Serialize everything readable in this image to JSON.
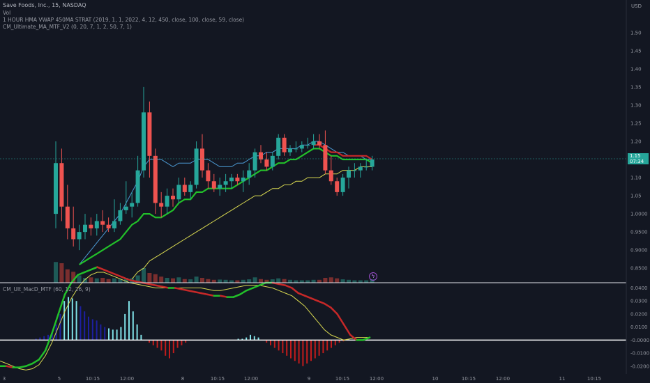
{
  "header": {
    "symbol_line": "Save Foods, Inc., 15, NASDAQ",
    "vol_label": "Vol",
    "indicator1": "1 HOUR HMA VWAP 450MA STRAT (2019, 1, 1, 2022, 4, 12, 450, close, 100, close, 59, close)",
    "indicator2": "CM_Ultimate_MA_MTF_V2 (0, 20, 7, 1, 2, 50, 7, 1)",
    "macd_label": "CM_Ult_MacD_MTF (60, 12, 26, 9)"
  },
  "currency": "USD",
  "price_tag": {
    "price": "1.15",
    "countdown": "07:34"
  },
  "alert_icon": "lightning-icon",
  "colors": {
    "background": "#131722",
    "up": "#26a69a",
    "down": "#ef5350",
    "hma": "#4c9ad4",
    "ma_green": "#22c02a",
    "ma_red": "#c62828",
    "ma_yellow": "#d8d850",
    "macd_hist_pos": "#1d1fa0",
    "macd_hist_pos_light": "#7fe0e6",
    "macd_hist_neg": "#c21c1c"
  },
  "chart_data": {
    "type": "candlestick",
    "price_axis": {
      "ylim": [
        0.81,
        1.59
      ],
      "ticks": [
        "1.50",
        "1.45",
        "1.40",
        "1.35",
        "1.30",
        "1.25",
        "1.20",
        "1.15",
        "1.10",
        "1.05",
        "1.0000",
        "0.9500",
        "0.9000",
        "0.8500"
      ]
    },
    "time_axis": {
      "labels": [
        "3",
        "5",
        "10:15",
        "12:00",
        "8",
        "10:15",
        "12:00",
        "9",
        "10:15",
        "12:00",
        "10",
        "10:15",
        "12:00",
        "11",
        "10:15"
      ]
    },
    "candles": [
      {
        "o": 1.0,
        "h": 1.2,
        "l": 0.96,
        "c": 1.14
      },
      {
        "o": 1.14,
        "h": 1.18,
        "l": 0.98,
        "c": 1.02
      },
      {
        "o": 1.02,
        "h": 1.08,
        "l": 0.93,
        "c": 0.96
      },
      {
        "o": 0.96,
        "h": 1.02,
        "l": 0.91,
        "c": 0.93
      },
      {
        "o": 0.93,
        "h": 0.97,
        "l": 0.9,
        "c": 0.95
      },
      {
        "o": 0.95,
        "h": 1.0,
        "l": 0.93,
        "c": 0.97
      },
      {
        "o": 0.97,
        "h": 0.99,
        "l": 0.94,
        "c": 0.96
      },
      {
        "o": 0.96,
        "h": 1.0,
        "l": 0.94,
        "c": 0.98
      },
      {
        "o": 0.98,
        "h": 1.01,
        "l": 0.95,
        "c": 0.97
      },
      {
        "o": 0.97,
        "h": 0.99,
        "l": 0.95,
        "c": 0.96
      },
      {
        "o": 0.96,
        "h": 1.04,
        "l": 0.95,
        "c": 0.98
      },
      {
        "o": 0.98,
        "h": 1.03,
        "l": 0.97,
        "c": 1.01
      },
      {
        "o": 1.01,
        "h": 1.09,
        "l": 1.0,
        "c": 1.02
      },
      {
        "o": 1.02,
        "h": 1.06,
        "l": 0.99,
        "c": 1.03
      },
      {
        "o": 1.03,
        "h": 1.16,
        "l": 1.02,
        "c": 1.12
      },
      {
        "o": 1.12,
        "h": 1.35,
        "l": 1.1,
        "c": 1.28
      },
      {
        "o": 1.28,
        "h": 1.31,
        "l": 1.1,
        "c": 1.16
      },
      {
        "o": 1.16,
        "h": 1.18,
        "l": 1.0,
        "c": 1.03
      },
      {
        "o": 1.03,
        "h": 1.06,
        "l": 0.99,
        "c": 1.02
      },
      {
        "o": 1.02,
        "h": 1.07,
        "l": 1.0,
        "c": 1.05
      },
      {
        "o": 1.05,
        "h": 1.07,
        "l": 1.02,
        "c": 1.04
      },
      {
        "o": 1.04,
        "h": 1.1,
        "l": 1.03,
        "c": 1.08
      },
      {
        "o": 1.08,
        "h": 1.1,
        "l": 1.05,
        "c": 1.06
      },
      {
        "o": 1.06,
        "h": 1.09,
        "l": 1.04,
        "c": 1.08
      },
      {
        "o": 1.08,
        "h": 1.2,
        "l": 1.07,
        "c": 1.18
      },
      {
        "o": 1.18,
        "h": 1.22,
        "l": 1.1,
        "c": 1.12
      },
      {
        "o": 1.12,
        "h": 1.14,
        "l": 1.07,
        "c": 1.09
      },
      {
        "o": 1.09,
        "h": 1.11,
        "l": 1.06,
        "c": 1.07
      },
      {
        "o": 1.07,
        "h": 1.1,
        "l": 1.05,
        "c": 1.08
      },
      {
        "o": 1.08,
        "h": 1.11,
        "l": 1.06,
        "c": 1.09
      },
      {
        "o": 1.09,
        "h": 1.11,
        "l": 1.07,
        "c": 1.1
      },
      {
        "o": 1.1,
        "h": 1.11,
        "l": 1.08,
        "c": 1.09
      },
      {
        "o": 1.09,
        "h": 1.12,
        "l": 1.06,
        "c": 1.1
      },
      {
        "o": 1.1,
        "h": 1.14,
        "l": 1.08,
        "c": 1.12
      },
      {
        "o": 1.12,
        "h": 1.18,
        "l": 1.1,
        "c": 1.17
      },
      {
        "o": 1.17,
        "h": 1.19,
        "l": 1.14,
        "c": 1.15
      },
      {
        "o": 1.15,
        "h": 1.17,
        "l": 1.12,
        "c": 1.13
      },
      {
        "o": 1.13,
        "h": 1.17,
        "l": 1.12,
        "c": 1.16
      },
      {
        "o": 1.16,
        "h": 1.22,
        "l": 1.15,
        "c": 1.21
      },
      {
        "o": 1.21,
        "h": 1.22,
        "l": 1.16,
        "c": 1.17
      },
      {
        "o": 1.17,
        "h": 1.19,
        "l": 1.16,
        "c": 1.18
      },
      {
        "o": 1.18,
        "h": 1.2,
        "l": 1.17,
        "c": 1.18
      },
      {
        "o": 1.18,
        "h": 1.2,
        "l": 1.17,
        "c": 1.19
      },
      {
        "o": 1.19,
        "h": 1.21,
        "l": 1.18,
        "c": 1.19
      },
      {
        "o": 1.19,
        "h": 1.22,
        "l": 1.18,
        "c": 1.2
      },
      {
        "o": 1.2,
        "h": 1.22,
        "l": 1.18,
        "c": 1.19
      },
      {
        "o": 1.19,
        "h": 1.23,
        "l": 1.11,
        "c": 1.12
      },
      {
        "o": 1.12,
        "h": 1.16,
        "l": 1.08,
        "c": 1.09
      },
      {
        "o": 1.09,
        "h": 1.1,
        "l": 1.05,
        "c": 1.06
      },
      {
        "o": 1.06,
        "h": 1.11,
        "l": 1.05,
        "c": 1.1
      },
      {
        "o": 1.1,
        "h": 1.13,
        "l": 1.07,
        "c": 1.12
      },
      {
        "o": 1.12,
        "h": 1.14,
        "l": 1.1,
        "c": 1.12
      },
      {
        "o": 1.12,
        "h": 1.14,
        "l": 1.1,
        "c": 1.13
      },
      {
        "o": 1.13,
        "h": 1.15,
        "l": 1.12,
        "c": 1.13
      },
      {
        "o": 1.13,
        "h": 1.16,
        "l": 1.12,
        "c": 1.15
      }
    ],
    "volume": [
      0.85,
      0.8,
      0.55,
      0.45,
      0.3,
      0.2,
      0.22,
      0.18,
      0.2,
      0.15,
      0.18,
      0.15,
      0.2,
      0.18,
      0.3,
      0.6,
      0.4,
      0.35,
      0.25,
      0.2,
      0.18,
      0.22,
      0.15,
      0.14,
      0.25,
      0.2,
      0.15,
      0.12,
      0.13,
      0.12,
      0.1,
      0.1,
      0.12,
      0.14,
      0.22,
      0.15,
      0.12,
      0.14,
      0.18,
      0.15,
      0.12,
      0.1,
      0.1,
      0.1,
      0.12,
      0.12,
      0.2,
      0.22,
      0.18,
      0.14,
      0.12,
      0.1,
      0.1,
      0.1,
      0.14
    ],
    "series": [
      {
        "values": [
          null,
          null,
          null,
          null,
          0.86,
          0.88,
          0.9,
          0.92,
          0.94,
          0.96,
          0.98,
          1.0,
          1.03,
          1.06,
          1.09,
          1.13,
          1.15,
          1.15,
          1.15,
          1.14,
          1.13,
          1.14,
          1.14,
          1.14,
          1.15,
          1.15,
          1.15,
          1.14,
          1.13,
          1.13,
          1.13,
          1.14,
          1.14,
          1.15,
          1.16,
          1.16,
          1.17,
          1.17,
          1.18,
          1.18,
          1.18,
          1.18,
          1.19,
          1.19,
          1.2,
          1.2,
          1.19,
          1.18,
          1.17,
          1.17,
          1.16,
          1.16,
          1.16,
          1.15,
          1.15
        ]
      },
      {
        "values": [
          null,
          null,
          null,
          null,
          0.86,
          0.87,
          0.88,
          0.89,
          0.9,
          0.91,
          0.92,
          0.93,
          0.95,
          0.97,
          0.98,
          1.0,
          1.0,
          0.99,
          0.99,
          1.0,
          1.01,
          1.03,
          1.04,
          1.04,
          1.06,
          1.06,
          1.07,
          1.07,
          1.07,
          1.07,
          1.07,
          1.08,
          1.09,
          1.1,
          1.11,
          1.12,
          1.12,
          1.13,
          1.14,
          1.14,
          1.15,
          1.15,
          1.16,
          1.17,
          1.18,
          1.18,
          1.17,
          1.16,
          1.16,
          1.15,
          1.15,
          1.15,
          1.15,
          1.15,
          1.14
        ]
      },
      {
        "values": [
          null,
          null,
          null,
          null,
          null,
          null,
          null,
          null,
          null,
          null,
          null,
          null,
          null,
          0.82,
          0.84,
          0.85,
          0.87,
          0.88,
          0.89,
          0.9,
          0.91,
          0.92,
          0.93,
          0.94,
          0.95,
          0.96,
          0.97,
          0.98,
          0.99,
          1.0,
          1.01,
          1.02,
          1.03,
          1.04,
          1.05,
          1.05,
          1.06,
          1.07,
          1.07,
          1.08,
          1.08,
          1.09,
          1.09,
          1.1,
          1.1,
          1.1,
          1.11,
          1.11,
          1.11,
          1.12,
          1.12,
          1.12,
          1.13,
          1.13,
          1.13
        ]
      }
    ],
    "macd": {
      "ylim": [
        -0.026,
        0.044
      ],
      "ticks": [
        "0.0400",
        "0.0300",
        "0.0200",
        "0.0100",
        "-0.0000",
        "-0.0100",
        "-0.0200"
      ],
      "histogram": [
        0.0,
        0.0,
        0.001,
        0.002,
        0.003,
        0.004,
        0.005,
        0.012,
        0.02,
        0.03,
        0.033,
        0.032,
        0.03,
        0.026,
        0.022,
        0.018,
        0.016,
        0.015,
        0.012,
        0.01,
        0.009,
        0.008,
        0.008,
        0.01,
        0.02,
        0.03,
        0.022,
        0.012,
        0.004,
        0.0,
        -0.002,
        -0.004,
        -0.006,
        -0.008,
        -0.012,
        -0.014,
        -0.01,
        -0.006,
        -0.004,
        -0.002,
        0.0,
        0.0,
        0.0,
        0.0,
        0.0,
        0.0,
        0.0,
        0.0,
        0.0,
        0.0,
        0.0,
        0.0,
        0.001,
        0.001,
        0.002,
        0.004,
        0.003,
        0.002,
        0.0,
        -0.002,
        -0.004,
        -0.006,
        -0.008,
        -0.01,
        -0.012,
        -0.014,
        -0.016,
        -0.018,
        -0.02,
        -0.018,
        -0.016,
        -0.014,
        -0.012,
        -0.01,
        -0.008,
        -0.006,
        -0.004,
        -0.002,
        -0.001
      ],
      "macd_line": [
        -0.02,
        -0.02,
        -0.021,
        -0.021,
        -0.02,
        -0.018,
        -0.015,
        -0.008,
        0.005,
        0.02,
        0.035,
        0.044,
        0.05,
        0.052,
        0.054,
        0.056,
        0.054,
        0.052,
        0.05,
        0.048,
        0.046,
        0.045,
        0.044,
        0.043,
        0.042,
        0.041,
        0.04,
        0.04,
        0.039,
        0.038,
        0.037,
        0.036,
        0.035,
        0.034,
        0.034,
        0.033,
        0.033,
        0.035,
        0.038,
        0.04,
        0.042,
        0.044,
        0.044,
        0.043,
        0.042,
        0.04,
        0.036,
        0.034,
        0.032,
        0.03,
        0.028,
        0.025,
        0.02,
        0.012,
        0.004,
        0.0,
        0.0,
        0.002
      ],
      "signal_line": [
        -0.016,
        -0.018,
        -0.02,
        -0.022,
        -0.023,
        -0.022,
        -0.019,
        -0.012,
        -0.002,
        0.01,
        0.022,
        0.032,
        0.04,
        0.046,
        0.05,
        0.052,
        0.052,
        0.05,
        0.048,
        0.046,
        0.044,
        0.043,
        0.042,
        0.041,
        0.04,
        0.04,
        0.04,
        0.04,
        0.04,
        0.04,
        0.04,
        0.04,
        0.039,
        0.038,
        0.038,
        0.039,
        0.04,
        0.041,
        0.042,
        0.042,
        0.042,
        0.041,
        0.04,
        0.038,
        0.036,
        0.034,
        0.03,
        0.026,
        0.02,
        0.014,
        0.008,
        0.004,
        0.002,
        0.0,
        0.001,
        0.002,
        0.002,
        0.002
      ]
    }
  }
}
